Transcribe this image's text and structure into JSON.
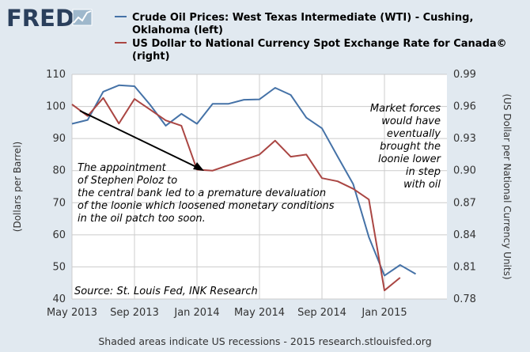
{
  "logo": {
    "text": "FRED"
  },
  "footer": "Shaded areas indicate US recessions - 2015 research.stlouisfed.org",
  "colors": {
    "wti": "#4572a7",
    "cad": "#aa4643",
    "background": "#e1e9f0",
    "plot_bg": "#ffffff",
    "grid": "#cccccc"
  },
  "chart_data": {
    "type": "line",
    "legend": {
      "placement": "top",
      "items": [
        {
          "lines": [
            "Crude Oil Prices: West Texas Intermediate (WTI) - Cushing,",
            "Oklahoma (left)"
          ]
        },
        {
          "lines": [
            "US Dollar to National Currency Spot Exchange Rate for Canada©",
            "(right)"
          ]
        }
      ]
    },
    "x_ticks": [
      "May 2013",
      "Sep 2013",
      "Jan 2014",
      "May 2014",
      "Sep 2014",
      "Jan 2015"
    ],
    "xlim": [
      "2013-05",
      "2015-05"
    ],
    "ylabel_left": "(Dollars per Barrel)",
    "ylabel_right": "(US Dollar per National Currency Units)",
    "ylim_left": [
      40,
      110
    ],
    "ylim_right": [
      0.78,
      0.99
    ],
    "y_ticks_left": [
      "40",
      "50",
      "60",
      "70",
      "80",
      "90",
      "100",
      "110"
    ],
    "y_ticks_right": [
      "0.78",
      "0.81",
      "0.84",
      "0.87",
      "0.90",
      "0.93",
      "0.96",
      "0.99"
    ],
    "grid": true,
    "series": [
      {
        "name": "Crude Oil Prices: West Texas Intermediate (WTI) - Cushing, Oklahoma",
        "axis": "left",
        "x": [
          "2013-05",
          "2013-06",
          "2013-07",
          "2013-08",
          "2013-09",
          "2013-10",
          "2013-11",
          "2013-12",
          "2014-01",
          "2014-02",
          "2014-03",
          "2014-04",
          "2014-05",
          "2014-06",
          "2014-07",
          "2014-08",
          "2014-09",
          "2014-10",
          "2014-11",
          "2014-12",
          "2015-01",
          "2015-02",
          "2015-03"
        ],
        "values": [
          94.6,
          95.8,
          104.6,
          106.6,
          106.3,
          100.5,
          94.0,
          97.7,
          94.6,
          100.8,
          100.8,
          102.1,
          102.2,
          105.8,
          103.6,
          96.5,
          93.2,
          84.4,
          75.8,
          59.3,
          47.3,
          50.6,
          47.8
        ]
      },
      {
        "name": "US Dollar to National Currency Spot Exchange Rate for Canada",
        "axis": "right",
        "x": [
          "2013-05",
          "2013-06",
          "2013-07",
          "2013-08",
          "2013-09",
          "2013-10",
          "2013-11",
          "2013-12",
          "2014-01",
          "2014-02",
          "2014-03",
          "2014-04",
          "2014-05",
          "2014-06",
          "2014-07",
          "2014-08",
          "2014-09",
          "2014-10",
          "2014-11",
          "2014-12",
          "2015-01",
          "2015-02"
        ],
        "values": [
          0.962,
          0.951,
          0.968,
          0.944,
          0.967,
          0.957,
          0.947,
          0.942,
          0.901,
          0.9,
          0.905,
          0.91,
          0.915,
          0.928,
          0.913,
          0.915,
          0.893,
          0.89,
          0.883,
          0.873,
          0.788,
          0.8
        ]
      }
    ],
    "annotations": [
      {
        "lines": [
          "The appointment",
          "of Stephen Poloz to",
          "the central bank led to a premature devaluation",
          "of the loonie which loosened monetary conditions",
          "in the oil patch too soon."
        ]
      },
      {
        "lines": [
          "Market forces",
          "would have",
          "eventually",
          "brought the",
          "loonie lower",
          "in step",
          "with oil"
        ]
      },
      {
        "lines": [
          "Source: St. Louis Fed, INK Research"
        ]
      }
    ]
  }
}
